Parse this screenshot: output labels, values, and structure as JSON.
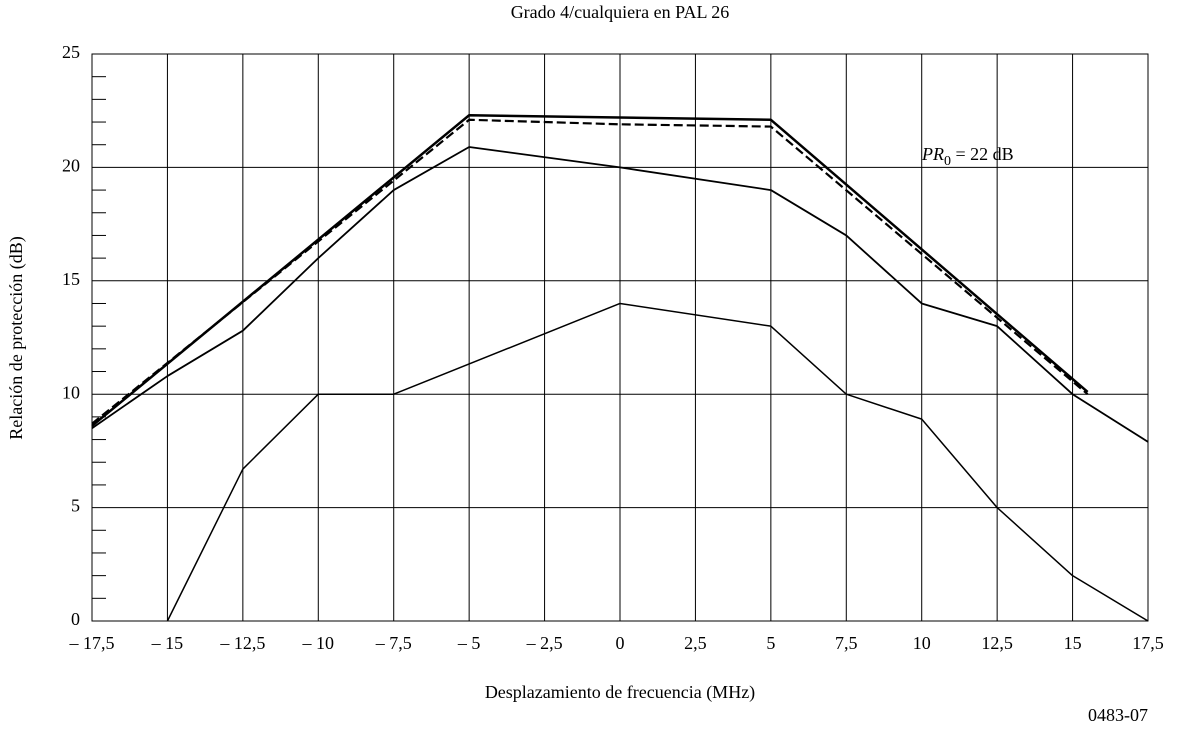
{
  "chart_data": {
    "type": "line",
    "title": "Grado 4/cualquiera en  PAL 26",
    "xlabel": "Desplazamiento de frecuencia (MHz)",
    "ylabel": "Relación de protección (dB)",
    "annotation": {
      "main": "PR",
      "sub": "0",
      "rest": " = 22 dB"
    },
    "figure_id": "0483-07",
    "xlim": [
      -17.5,
      17.5
    ],
    "ylim": [
      0,
      25
    ],
    "xticks": [
      {
        "value": -17.5,
        "label": "– 17,5"
      },
      {
        "value": -15,
        "label": "– 15"
      },
      {
        "value": -12.5,
        "label": "– 12,5"
      },
      {
        "value": -10,
        "label": "– 10"
      },
      {
        "value": -7.5,
        "label": "– 7,5"
      },
      {
        "value": -5,
        "label": "– 5"
      },
      {
        "value": -2.5,
        "label": "– 2,5"
      },
      0,
      {
        "value": 2.5,
        "label": "2,5"
      },
      5,
      {
        "value": 7.5,
        "label": "7,5"
      },
      10,
      {
        "value": 12.5,
        "label": "12,5"
      },
      15,
      {
        "value": 17.5,
        "label": "17,5"
      }
    ],
    "yticks": [
      0,
      5,
      10,
      15,
      20,
      25
    ],
    "grid": true,
    "series": [
      {
        "color": "#000",
        "width": 2.5,
        "dashed": false,
        "x": [
          -17.5,
          -5,
          5,
          15.5
        ],
        "values": [
          8.6,
          22.3,
          22.1,
          10.1
        ]
      },
      {
        "color": "#000",
        "width": 2.2,
        "dashed": true,
        "x": [
          -17.5,
          -5,
          0,
          5,
          15.5
        ],
        "values": [
          8.7,
          22.1,
          21.9,
          21.8,
          10.0
        ]
      },
      {
        "color": "#000",
        "width": 1.8,
        "dashed": false,
        "x": [
          -17.5,
          -15,
          -12.5,
          -10,
          -7.5,
          -5,
          0,
          5,
          7.5,
          10,
          12.5,
          15,
          17.5
        ],
        "values": [
          8.5,
          10.8,
          12.8,
          16,
          19,
          20.9,
          20,
          19,
          17,
          14,
          13,
          10,
          7.9
        ]
      },
      {
        "color": "#000",
        "width": 1.5,
        "dashed": false,
        "x": [
          -15,
          -12.5,
          -10,
          -7.5,
          0,
          5,
          7.5,
          10,
          12.5,
          15,
          17.5
        ],
        "values": [
          0,
          6.7,
          10,
          10,
          14,
          13,
          10,
          8.9,
          5,
          2,
          0
        ]
      }
    ]
  }
}
